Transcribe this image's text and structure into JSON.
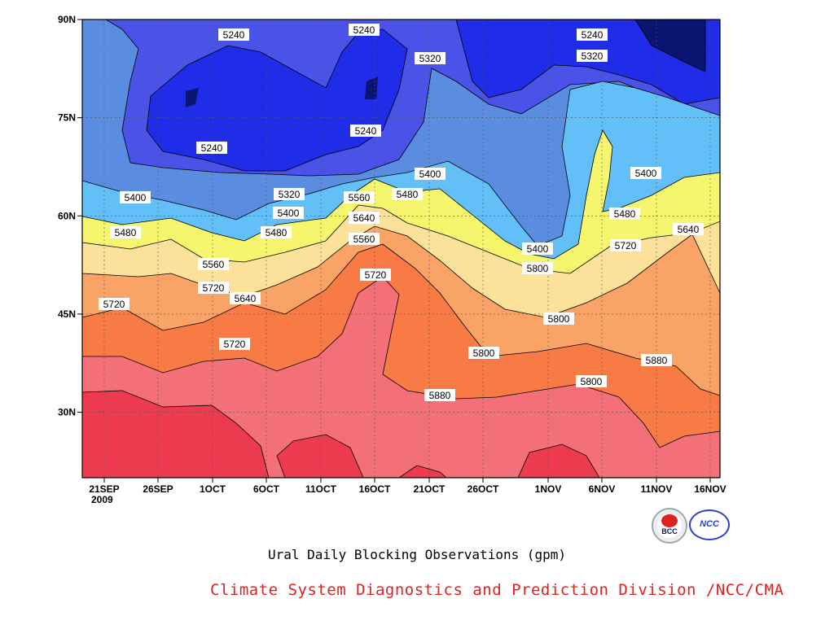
{
  "chart_data": {
    "type": "heatmap",
    "title": "Ural Daily Blocking Observations (gpm)",
    "x_tick_labels": [
      "21SEP",
      "26SEP",
      "1OCT",
      "6OCT",
      "11OCT",
      "16OCT",
      "21OCT",
      "26OCT",
      "1NOV",
      "6NOV",
      "11NOV",
      "16NOV"
    ],
    "x_year_label": "2009",
    "y_tick_labels": [
      "30N",
      "45N",
      "60N",
      "75N",
      "90N"
    ],
    "y_range": [
      20,
      90
    ],
    "contour_levels": [
      5240,
      5320,
      5400,
      5480,
      5560,
      5640,
      5720,
      5800,
      5880
    ],
    "contour_labels": [
      5240,
      5240,
      5240,
      5240,
      5240,
      5320,
      5320,
      5400,
      5320,
      5400,
      5400,
      5400,
      5480,
      5560,
      5480,
      5480,
      5400,
      5480,
      5560,
      5640,
      5640,
      5720,
      5560,
      5720,
      5720,
      5640,
      5800,
      5720,
      5800,
      5720,
      5800,
      5800,
      5880,
      5880
    ],
    "colors": [
      "#0b1470",
      "#1f2de8",
      "#4a52e8",
      "#5a8de0",
      "#63bff8",
      "#f5f56e",
      "#fce19a",
      "#f9a466",
      "#f87a45",
      "#f37078",
      "#ec3a4e"
    ]
  },
  "footer": {
    "credit": "Climate System Diagnostics and Prediction Division /NCC/CMA",
    "logo_left_text": "BCC",
    "logo_right_text": "NCC"
  }
}
